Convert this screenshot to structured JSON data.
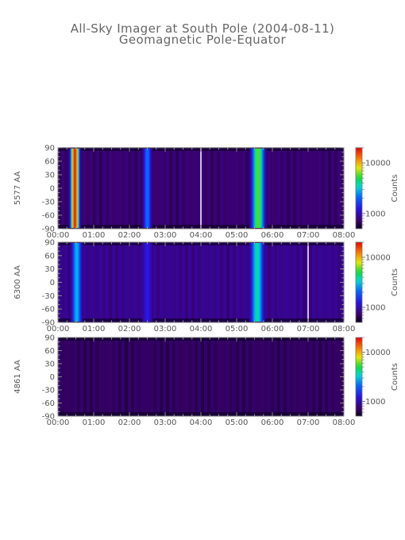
{
  "title": "All-Sky Imager at South Pole (2004-08-11)",
  "subtitle": "Geomagnetic Pole-Equator",
  "chart_data": [
    {
      "type": "heatmap",
      "ylabel": "5577 AA",
      "colorbar_label": "Counts",
      "colorbar_ticks": [
        {
          "label": "10000",
          "value": 10000
        },
        {
          "label": "1000",
          "value": 1000
        }
      ],
      "color_range": [
        500,
        20000
      ],
      "color_scale": "log",
      "x_ticks": [
        "00:00",
        "01:00",
        "02:00",
        "03:00",
        "04:00",
        "05:00",
        "06:00",
        "07:00",
        "08:00"
      ],
      "xlim_hours": [
        0,
        8
      ],
      "y_ticks": [
        "90",
        "60",
        "30",
        "0",
        "-30",
        "-60",
        "-90"
      ],
      "ylim": [
        -90,
        90
      ],
      "background_counts": 700,
      "data_gaps_hours": [
        4.0
      ],
      "features": [
        {
          "t_start": 0.3,
          "t_end": 0.65,
          "peak_counts": 18000
        },
        {
          "t_start": 2.35,
          "t_end": 2.65,
          "peak_counts": 2200
        },
        {
          "t_start": 5.35,
          "t_end": 5.85,
          "peak_counts": 6000
        }
      ]
    },
    {
      "type": "heatmap",
      "ylabel": "6300 AA",
      "colorbar_label": "Counts",
      "colorbar_ticks": [
        {
          "label": "10000",
          "value": 10000
        },
        {
          "label": "1000",
          "value": 1000
        }
      ],
      "color_range": [
        500,
        20000
      ],
      "color_scale": "log",
      "x_ticks": [
        "00:00",
        "01:00",
        "02:00",
        "03:00",
        "04:00",
        "05:00",
        "06:00",
        "07:00",
        "08:00"
      ],
      "xlim_hours": [
        0,
        8
      ],
      "y_ticks": [
        "90",
        "60",
        "30",
        "0",
        "-30",
        "-60",
        "-90"
      ],
      "ylim": [
        -90,
        90
      ],
      "background_counts": 800,
      "data_gaps_hours": [
        7.0
      ],
      "features": [
        {
          "t_start": 0.35,
          "t_end": 0.7,
          "peak_counts": 3000
        },
        {
          "t_start": 2.35,
          "t_end": 2.65,
          "peak_counts": 1300
        },
        {
          "t_start": 5.35,
          "t_end": 5.8,
          "peak_counts": 4000
        }
      ]
    },
    {
      "type": "heatmap",
      "ylabel": "4861 AA",
      "colorbar_label": "Counts",
      "colorbar_ticks": [
        {
          "label": "10000",
          "value": 10000
        },
        {
          "label": "1000",
          "value": 1000
        }
      ],
      "color_range": [
        500,
        20000
      ],
      "color_scale": "log",
      "x_ticks": [
        "00:00",
        "01:00",
        "02:00",
        "03:00",
        "04:00",
        "05:00",
        "06:00",
        "07:00",
        "08:00"
      ],
      "xlim_hours": [
        0,
        8
      ],
      "y_ticks": [
        "90",
        "60",
        "30",
        "0",
        "-30",
        "-60",
        "-90"
      ],
      "ylim": [
        -90,
        90
      ],
      "background_counts": 650,
      "data_gaps_hours": [],
      "features": []
    }
  ]
}
